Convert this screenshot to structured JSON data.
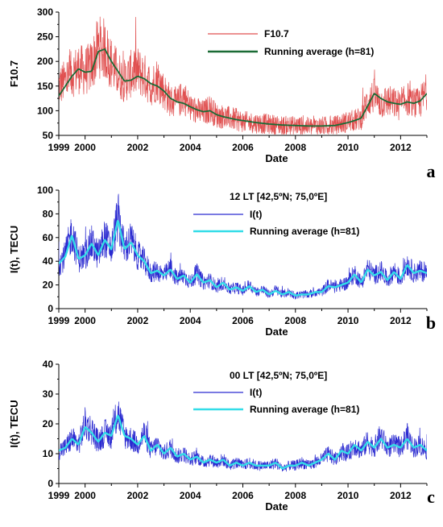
{
  "chart_data": [
    {
      "type": "line",
      "panel_label": "a",
      "xlabel": "Date",
      "ylabel": "F10.7",
      "xlim": [
        1999,
        2013
      ],
      "ylim": [
        50,
        300
      ],
      "x_ticks": [
        "1999",
        "2000",
        "2002",
        "2004",
        "2006",
        "2008",
        "2010",
        "2012"
      ],
      "y_ticks": [
        "50",
        "100",
        "150",
        "200",
        "250",
        "300"
      ],
      "annotation": "",
      "legend_position": "top-right",
      "colors": {
        "raw": "#e05050",
        "avg": "#1a6b35"
      },
      "series": [
        {
          "name": "F10.7",
          "style": "daily",
          "x": [
            1999.0,
            1999.25,
            1999.5,
            1999.75,
            2000.0,
            2000.25,
            2000.5,
            2000.75,
            2001.0,
            2001.25,
            2001.5,
            2001.75,
            2002.0,
            2002.25,
            2002.5,
            2002.75,
            2003.0,
            2003.25,
            2003.5,
            2003.75,
            2004.0,
            2004.25,
            2004.5,
            2004.75,
            2005.0,
            2005.25,
            2005.5,
            2005.75,
            2006.0,
            2006.5,
            2007.0,
            2007.5,
            2008.0,
            2008.5,
            2009.0,
            2009.5,
            2010.0,
            2010.25,
            2010.5,
            2010.75,
            2011.0,
            2011.25,
            2011.5,
            2011.75,
            2012.0,
            2012.25,
            2012.5,
            2012.75,
            2013.0
          ],
          "values": [
            150,
            160,
            175,
            185,
            180,
            190,
            230,
            225,
            195,
            175,
            160,
            175,
            180,
            170,
            150,
            165,
            140,
            120,
            115,
            130,
            105,
            100,
            95,
            105,
            90,
            88,
            85,
            82,
            78,
            75,
            73,
            70,
            70,
            68,
            69,
            70,
            78,
            80,
            85,
            120,
            130,
            115,
            120,
            115,
            110,
            125,
            110,
            118,
            140
          ]
        },
        {
          "name": "Running average (h=81)",
          "style": "smooth",
          "x": [
            1999.0,
            1999.25,
            1999.5,
            1999.75,
            2000.0,
            2000.25,
            2000.5,
            2000.75,
            2001.0,
            2001.25,
            2001.5,
            2001.75,
            2002.0,
            2002.25,
            2002.5,
            2002.75,
            2003.0,
            2003.25,
            2003.5,
            2003.75,
            2004.0,
            2004.25,
            2004.5,
            2004.75,
            2005.0,
            2005.25,
            2005.5,
            2005.75,
            2006.0,
            2006.5,
            2007.0,
            2007.5,
            2008.0,
            2008.5,
            2009.0,
            2009.5,
            2010.0,
            2010.25,
            2010.5,
            2010.75,
            2011.0,
            2011.25,
            2011.5,
            2011.75,
            2012.0,
            2012.25,
            2012.5,
            2012.75,
            2013.0
          ],
          "values": [
            130,
            150,
            170,
            185,
            178,
            180,
            220,
            225,
            200,
            180,
            160,
            162,
            170,
            165,
            155,
            150,
            140,
            125,
            118,
            115,
            108,
            102,
            98,
            100,
            92,
            88,
            85,
            82,
            80,
            76,
            73,
            71,
            70,
            69,
            69,
            70,
            76,
            80,
            85,
            110,
            135,
            125,
            118,
            115,
            113,
            118,
            115,
            120,
            135
          ]
        }
      ]
    },
    {
      "type": "line",
      "panel_label": "b",
      "xlabel": "Date",
      "ylabel": "I(t), TECU",
      "xlim": [
        1999,
        2013
      ],
      "ylim": [
        0,
        100
      ],
      "x_ticks": [
        "1999",
        "2000",
        "2002",
        "2004",
        "2006",
        "2008",
        "2010",
        "2012"
      ],
      "y_ticks": [
        "0",
        "20",
        "40",
        "60",
        "80",
        "100"
      ],
      "annotation": "12 LT [42,5ºN; 75,0ºE]",
      "legend_position": "top-right",
      "colors": {
        "raw": "#2a2ad0",
        "avg": "#33dde8"
      },
      "series": [
        {
          "name": "I(t)",
          "style": "daily",
          "x": [
            1999.0,
            1999.25,
            1999.5,
            1999.75,
            2000.0,
            2000.25,
            2000.5,
            2000.75,
            2001.0,
            2001.25,
            2001.5,
            2001.75,
            2002.0,
            2002.25,
            2002.5,
            2002.75,
            2003.0,
            2003.25,
            2003.5,
            2003.75,
            2004.0,
            2004.25,
            2004.5,
            2004.75,
            2005.0,
            2005.25,
            2005.5,
            2005.75,
            2006.0,
            2006.25,
            2006.5,
            2006.75,
            2007.0,
            2007.25,
            2007.5,
            2007.75,
            2008.0,
            2008.25,
            2008.5,
            2008.75,
            2009.0,
            2009.25,
            2009.5,
            2009.75,
            2010.0,
            2010.25,
            2010.5,
            2010.75,
            2011.0,
            2011.25,
            2011.5,
            2011.75,
            2012.0,
            2012.25,
            2012.5,
            2012.75,
            2013.0
          ],
          "values": [
            38,
            45,
            65,
            42,
            45,
            55,
            45,
            60,
            50,
            78,
            50,
            58,
            45,
            40,
            30,
            32,
            28,
            34,
            25,
            28,
            22,
            30,
            22,
            24,
            18,
            22,
            16,
            18,
            15,
            20,
            14,
            16,
            12,
            16,
            12,
            14,
            11,
            12,
            12,
            14,
            14,
            20,
            18,
            20,
            22,
            30,
            22,
            34,
            28,
            32,
            24,
            32,
            25,
            38,
            30,
            32,
            30
          ]
        },
        {
          "name": "Running average (h=81)",
          "style": "smooth",
          "x": [
            1999.0,
            1999.25,
            1999.5,
            1999.75,
            2000.0,
            2000.25,
            2000.5,
            2000.75,
            2001.0,
            2001.25,
            2001.5,
            2001.75,
            2002.0,
            2002.25,
            2002.5,
            2002.75,
            2003.0,
            2003.25,
            2003.5,
            2003.75,
            2004.0,
            2004.25,
            2004.5,
            2004.75,
            2005.0,
            2005.25,
            2005.5,
            2005.75,
            2006.0,
            2006.25,
            2006.5,
            2006.75,
            2007.0,
            2007.25,
            2007.5,
            2007.75,
            2008.0,
            2008.25,
            2008.5,
            2008.75,
            2009.0,
            2009.25,
            2009.5,
            2009.75,
            2010.0,
            2010.25,
            2010.5,
            2010.75,
            2011.0,
            2011.25,
            2011.5,
            2011.75,
            2012.0,
            2012.25,
            2012.5,
            2012.75,
            2013.0
          ],
          "values": [
            38,
            44,
            62,
            42,
            45,
            55,
            45,
            58,
            50,
            75,
            50,
            56,
            45,
            40,
            30,
            32,
            28,
            33,
            25,
            28,
            22,
            29,
            22,
            24,
            18,
            22,
            16,
            18,
            15,
            19,
            14,
            16,
            12,
            15,
            12,
            14,
            11,
            12,
            12,
            14,
            14,
            19,
            18,
            20,
            22,
            29,
            22,
            33,
            28,
            31,
            24,
            31,
            25,
            37,
            30,
            32,
            30
          ]
        }
      ]
    },
    {
      "type": "line",
      "panel_label": "c",
      "xlabel": "Date",
      "ylabel": "I(t), TECU",
      "xlim": [
        1999,
        2013
      ],
      "ylim": [
        0,
        40
      ],
      "x_ticks": [
        "1999",
        "2000",
        "2002",
        "2004",
        "2006",
        "2008",
        "2010",
        "2012"
      ],
      "y_ticks": [
        "0",
        "10",
        "20",
        "30",
        "40"
      ],
      "annotation": "00 LT [42,5ºN; 75,0ºE]",
      "legend_position": "top-right",
      "colors": {
        "raw": "#2a2ad0",
        "avg": "#33dde8"
      },
      "series": [
        {
          "name": "I(t)",
          "style": "daily",
          "x": [
            1999.0,
            1999.25,
            1999.5,
            1999.75,
            2000.0,
            2000.25,
            2000.5,
            2000.75,
            2001.0,
            2001.25,
            2001.5,
            2001.75,
            2002.0,
            2002.25,
            2002.5,
            2002.75,
            2003.0,
            2003.25,
            2003.5,
            2003.75,
            2004.0,
            2004.25,
            2004.5,
            2004.75,
            2005.0,
            2005.25,
            2005.5,
            2005.75,
            2006.0,
            2006.25,
            2006.5,
            2006.75,
            2007.0,
            2007.25,
            2007.5,
            2007.75,
            2008.0,
            2008.25,
            2008.5,
            2008.75,
            2009.0,
            2009.25,
            2009.5,
            2009.75,
            2010.0,
            2010.25,
            2010.5,
            2010.75,
            2011.0,
            2011.25,
            2011.5,
            2011.75,
            2012.0,
            2012.25,
            2012.5,
            2012.75,
            2013.0
          ],
          "values": [
            11,
            12,
            15,
            13,
            20,
            18,
            14,
            17,
            16,
            24,
            16,
            15,
            13,
            17,
            11,
            13,
            10,
            12,
            9,
            10,
            8,
            9,
            7,
            8,
            7,
            8,
            6,
            7,
            6,
            7,
            6,
            6,
            6,
            7,
            5,
            6,
            6,
            7,
            6,
            7,
            8,
            10,
            8,
            11,
            10,
            13,
            11,
            14,
            12,
            16,
            12,
            13,
            12,
            16,
            12,
            13,
            11
          ]
        },
        {
          "name": "Running average (h=81)",
          "style": "smooth",
          "x": [
            1999.0,
            1999.25,
            1999.5,
            1999.75,
            2000.0,
            2000.25,
            2000.5,
            2000.75,
            2001.0,
            2001.25,
            2001.5,
            2001.75,
            2002.0,
            2002.25,
            2002.5,
            2002.75,
            2003.0,
            2003.25,
            2003.5,
            2003.75,
            2004.0,
            2004.25,
            2004.5,
            2004.75,
            2005.0,
            2005.25,
            2005.5,
            2005.75,
            2006.0,
            2006.25,
            2006.5,
            2006.75,
            2007.0,
            2007.25,
            2007.5,
            2007.75,
            2008.0,
            2008.25,
            2008.5,
            2008.75,
            2009.0,
            2009.25,
            2009.5,
            2009.75,
            2010.0,
            2010.25,
            2010.5,
            2010.75,
            2011.0,
            2011.25,
            2011.5,
            2011.75,
            2012.0,
            2012.25,
            2012.5,
            2012.75,
            2013.0
          ],
          "values": [
            11,
            12,
            15,
            13,
            19,
            17,
            14,
            17,
            16,
            23,
            16,
            15,
            13,
            16,
            11,
            13,
            10,
            12,
            9,
            10,
            8,
            9,
            7,
            8,
            7,
            8,
            6,
            7,
            6,
            7,
            6,
            6,
            6,
            7,
            5,
            6,
            6,
            7,
            6,
            7,
            8,
            10,
            8,
            11,
            10,
            13,
            11,
            14,
            12,
            15,
            12,
            13,
            12,
            15,
            12,
            13,
            11
          ]
        }
      ]
    }
  ]
}
